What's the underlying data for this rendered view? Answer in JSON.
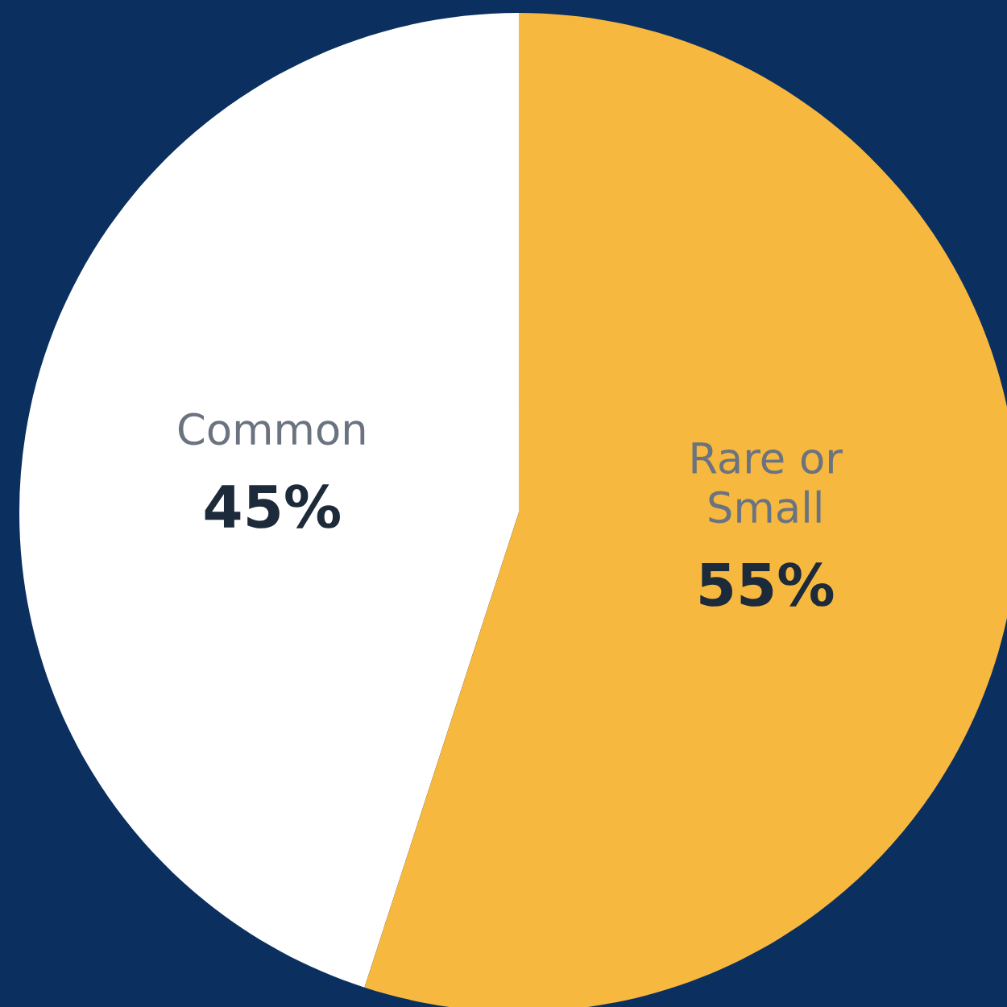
{
  "chart_data": {
    "type": "pie",
    "categories": [
      "Common",
      "Rare or\nSmall"
    ],
    "values": [
      45,
      55
    ],
    "colors": [
      "#ffffff",
      "#f6b83f"
    ],
    "value_labels": [
      "45%",
      "55%"
    ]
  }
}
